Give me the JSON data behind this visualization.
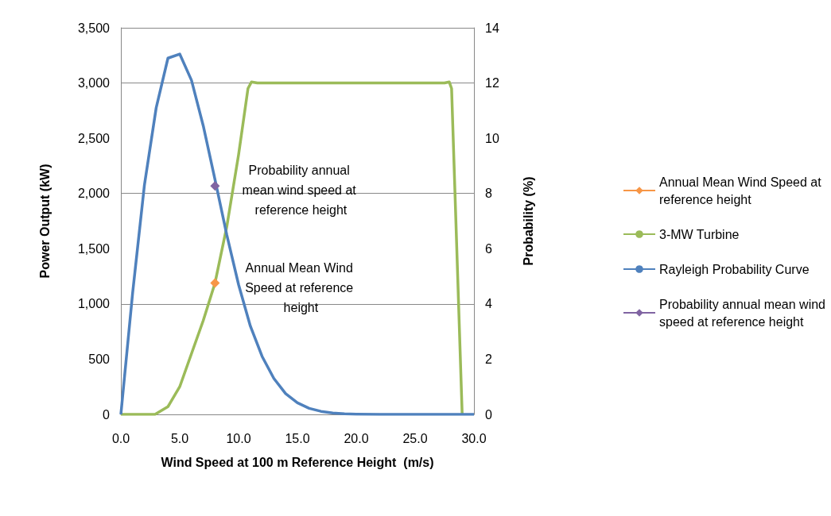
{
  "chart_data": {
    "type": "line",
    "xlabel": "Wind Speed at 100 m Reference Height  (m/s)",
    "ylabel": "Power Output (kW)",
    "y2label": "Probability (%)",
    "xlim": [
      0,
      30
    ],
    "xticks": [
      {
        "value": 0,
        "label": "0.0"
      },
      {
        "value": 5,
        "label": "5.0"
      },
      {
        "value": 10,
        "label": "10.0"
      },
      {
        "value": 15,
        "label": "15.0"
      },
      {
        "value": 20,
        "label": "20.0"
      },
      {
        "value": 25,
        "label": "25.0"
      },
      {
        "value": 30,
        "label": "30.0"
      }
    ],
    "ylim": [
      0,
      3500
    ],
    "yticks": [
      0,
      500,
      {
        "value": 1000,
        "label": "1,000"
      },
      {
        "value": 1500,
        "label": "1,500"
      },
      {
        "value": 2000,
        "label": "2,000"
      },
      {
        "value": 2500,
        "label": "2,500"
      },
      {
        "value": 3000,
        "label": "3,000"
      },
      {
        "value": 3500,
        "label": "3,500"
      }
    ],
    "y2lim": [
      0,
      14
    ],
    "y2ticks": [
      0,
      2,
      4,
      6,
      8,
      10,
      12,
      14
    ],
    "grid": "y",
    "legend": "right",
    "line_style": "solid",
    "series": [
      {
        "name": "Annual Mean Wind Speed at reference height",
        "color": "#f79646",
        "marker": "diamond",
        "x": [
          8.0
        ],
        "values": [
          1190
        ]
      },
      {
        "name": "3-MW Turbine",
        "color": "#9bbb59",
        "marker": "none",
        "x": [
          0,
          2.9,
          4,
          5,
          6,
          7,
          8,
          9,
          10,
          10.8,
          11.1,
          11.6,
          27.5,
          27.9,
          28.1,
          29.0
        ],
        "values": [
          0,
          0,
          70,
          250,
          550,
          850,
          1190,
          1700,
          2350,
          2950,
          3010,
          3000,
          3000,
          3010,
          2950,
          0
        ]
      },
      {
        "name": "Rayleigh Probability Curve",
        "color": "#4f81bd",
        "marker": "none",
        "axis": "y2",
        "x": [
          0,
          1,
          2,
          3,
          4,
          5,
          6,
          7,
          8,
          9,
          10,
          11,
          12,
          13,
          14,
          15,
          16,
          17,
          18,
          19,
          20,
          22,
          25,
          30
        ],
        "values": [
          0,
          4.4,
          8.3,
          11.1,
          12.9,
          13.05,
          12.1,
          10.45,
          8.5,
          6.5,
          4.7,
          3.2,
          2.1,
          1.3,
          0.75,
          0.42,
          0.22,
          0.11,
          0.05,
          0.02,
          0.01,
          0,
          0,
          0
        ]
      },
      {
        "name": "Probability annual mean wind speed at reference height",
        "color": "#8064a2",
        "marker": "diamond",
        "axis": "y2",
        "x": [
          8.0
        ],
        "values": [
          8.27
        ]
      }
    ],
    "annotations": [
      {
        "text": "Probability annual mean wind speed at reference height",
        "x": 8.0,
        "y": 2070
      },
      {
        "text": "Annual Mean Wind Speed at reference height",
        "x": 8.0,
        "y": 1190
      }
    ]
  }
}
